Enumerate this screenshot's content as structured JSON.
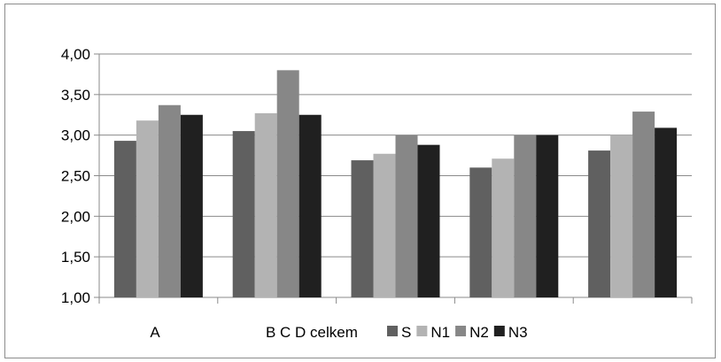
{
  "chart_data": {
    "type": "bar",
    "title": "",
    "xlabel": "",
    "ylabel": "",
    "categories": [
      "A",
      "B",
      "C",
      "D",
      "celkem"
    ],
    "ylim": [
      1.0,
      4.0
    ],
    "yticks": [
      "1,00",
      "1,50",
      "2,00",
      "2,50",
      "3,00",
      "3,50",
      "4,00"
    ],
    "grid": true,
    "legend_position": "bottom",
    "series": [
      {
        "name": "S",
        "color": "#606060",
        "values": [
          2.93,
          3.05,
          2.69,
          2.6,
          2.81
        ]
      },
      {
        "name": "N1",
        "color": "#b3b3b3",
        "values": [
          3.18,
          3.27,
          2.77,
          2.71,
          3.0
        ]
      },
      {
        "name": "N2",
        "color": "#878787",
        "values": [
          3.37,
          3.8,
          3.0,
          3.0,
          3.29
        ]
      },
      {
        "name": "N3",
        "color": "#202020",
        "values": [
          3.25,
          3.25,
          2.88,
          3.0,
          3.09
        ]
      }
    ]
  }
}
